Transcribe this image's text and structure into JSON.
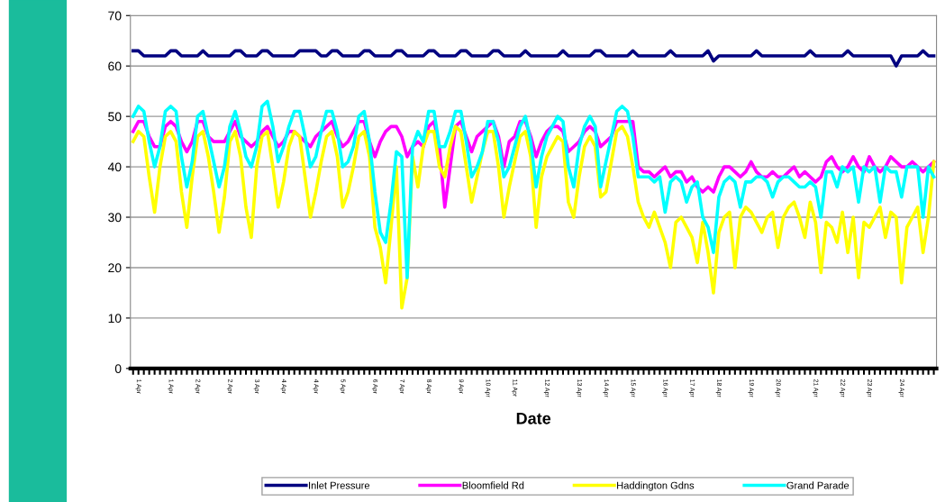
{
  "chart_data": {
    "type": "line",
    "xlabel": "Date",
    "categories": [
      null,
      "1 Apr",
      null,
      null,
      null,
      null,
      null,
      "1 Apr",
      null,
      null,
      null,
      null,
      "2 Apr",
      null,
      null,
      null,
      null,
      null,
      "2 Apr",
      null,
      null,
      null,
      null,
      "3 Apr",
      null,
      null,
      null,
      null,
      "4 Apr",
      null,
      null,
      null,
      null,
      null,
      "4 Apr",
      null,
      null,
      null,
      null,
      "5 Apr",
      null,
      null,
      null,
      null,
      null,
      "6 Apr",
      null,
      null,
      null,
      null,
      "7 Apr",
      null,
      null,
      null,
      null,
      "8 Apr",
      null,
      null,
      null,
      null,
      null,
      "9 Apr",
      null,
      null,
      null,
      null,
      "10 Apr",
      null,
      null,
      null,
      null,
      "11 Apr",
      null,
      null,
      null,
      null,
      null,
      "12 Apr",
      null,
      null,
      null,
      null,
      null,
      "13 Apr",
      null,
      null,
      null,
      null,
      "14 Apr",
      null,
      null,
      null,
      null,
      "15 Apr",
      null,
      null,
      null,
      null,
      null,
      "16 Apr",
      null,
      null,
      null,
      null,
      "17 Apr",
      null,
      null,
      null,
      null,
      "18 Apr",
      null,
      null,
      null,
      null,
      null,
      "19 Apr",
      null,
      null,
      null,
      null,
      "20 Apr",
      null,
      null,
      null,
      null,
      null,
      null,
      "21 Apr",
      null,
      null,
      null,
      null,
      "22 Apr",
      null,
      null,
      null,
      null,
      "23 Apr",
      null,
      null,
      null,
      null,
      null,
      "24 Apr",
      null,
      null,
      null,
      null,
      null,
      null
    ],
    "series": [
      {
        "name": "Inlet Pressure",
        "color": "#000080",
        "values": [
          63,
          63,
          62,
          62,
          62,
          62,
          62,
          63,
          63,
          62,
          62,
          62,
          62,
          63,
          62,
          62,
          62,
          62,
          62,
          63,
          63,
          62,
          62,
          62,
          63,
          63,
          62,
          62,
          62,
          62,
          62,
          63,
          63,
          63,
          63,
          62,
          62,
          63,
          63,
          62,
          62,
          62,
          62,
          63,
          63,
          62,
          62,
          62,
          62,
          63,
          63,
          62,
          62,
          62,
          62,
          63,
          63,
          62,
          62,
          62,
          62,
          63,
          63,
          62,
          62,
          62,
          62,
          63,
          63,
          62,
          62,
          62,
          62,
          63,
          62,
          62,
          62,
          62,
          62,
          62,
          63,
          62,
          62,
          62,
          62,
          62,
          63,
          63,
          62,
          62,
          62,
          62,
          62,
          63,
          62,
          62,
          62,
          62,
          62,
          62,
          63,
          62,
          62,
          62,
          62,
          62,
          62,
          63,
          61,
          62,
          62,
          62,
          62,
          62,
          62,
          62,
          63,
          62,
          62,
          62,
          62,
          62,
          62,
          62,
          62,
          62,
          63,
          62,
          62,
          62,
          62,
          62,
          62,
          63,
          62,
          62,
          62,
          62,
          62,
          62,
          62,
          62,
          60,
          62,
          62,
          62,
          62,
          63,
          62,
          62
        ]
      },
      {
        "name": "Bloomfield Rd",
        "color": "#ff00ff",
        "values": [
          47,
          49,
          49,
          46,
          44,
          44,
          48,
          49,
          48,
          45,
          43,
          45,
          49,
          49,
          46,
          45,
          45,
          45,
          47,
          49,
          46,
          45,
          44,
          45,
          47,
          48,
          46,
          44,
          45,
          47,
          47,
          46,
          45,
          44,
          46,
          47,
          48,
          49,
          46,
          44,
          45,
          47,
          49,
          49,
          45,
          42,
          45,
          47,
          48,
          48,
          46,
          42,
          44,
          45,
          44,
          48,
          49,
          44,
          32,
          40,
          48,
          49,
          46,
          43,
          46,
          47,
          48,
          49,
          46,
          40,
          45,
          46,
          49,
          49,
          46,
          42,
          45,
          47,
          48,
          48,
          47,
          43,
          44,
          45,
          47,
          48,
          47,
          44,
          45,
          46,
          49,
          49,
          49,
          49,
          40,
          39,
          39,
          38,
          39,
          40,
          38,
          39,
          39,
          37,
          38,
          36,
          35,
          36,
          35,
          38,
          40,
          40,
          39,
          38,
          39,
          41,
          39,
          38,
          38,
          39,
          38,
          38,
          39,
          40,
          38,
          39,
          38,
          37,
          38,
          41,
          42,
          40,
          39,
          40,
          42,
          40,
          39,
          42,
          40,
          39,
          40,
          42,
          41,
          40,
          40,
          41,
          40,
          39,
          40,
          41
        ]
      },
      {
        "name": "Haddington Gdns",
        "color": "#ffff00",
        "values": [
          45,
          47,
          46,
          38,
          31,
          40,
          46,
          47,
          45,
          35,
          28,
          38,
          46,
          47,
          42,
          35,
          27,
          34,
          45,
          47,
          42,
          32,
          26,
          40,
          46,
          47,
          40,
          32,
          37,
          44,
          47,
          46,
          38,
          30,
          35,
          41,
          46,
          47,
          42,
          32,
          35,
          40,
          46,
          47,
          42,
          28,
          24,
          17,
          28,
          40,
          12,
          18,
          42,
          36,
          44,
          47,
          47,
          40,
          38,
          44,
          48,
          47,
          40,
          33,
          38,
          43,
          47,
          47,
          40,
          30,
          36,
          41,
          46,
          47,
          42,
          28,
          38,
          42,
          44,
          46,
          45,
          33,
          30,
          38,
          44,
          46,
          44,
          34,
          35,
          41,
          47,
          48,
          46,
          40,
          33,
          30,
          28,
          31,
          28,
          25,
          20,
          29,
          30,
          28,
          26,
          21,
          29,
          23,
          15,
          27,
          30,
          31,
          20,
          30,
          32,
          31,
          29,
          27,
          30,
          31,
          24,
          30,
          32,
          33,
          30,
          26,
          33,
          29,
          19,
          29,
          28,
          25,
          31,
          23,
          30,
          18,
          29,
          28,
          30,
          32,
          26,
          31,
          30,
          17,
          28,
          30,
          32,
          23,
          30,
          41
        ]
      },
      {
        "name": "Grand Parade",
        "color": "#00ffff",
        "values": [
          50,
          52,
          51,
          45,
          40,
          44,
          51,
          52,
          51,
          42,
          36,
          41,
          50,
          51,
          46,
          41,
          36,
          40,
          48,
          51,
          47,
          42,
          40,
          44,
          52,
          53,
          48,
          41,
          44,
          48,
          51,
          51,
          46,
          40,
          42,
          47,
          51,
          51,
          47,
          40,
          41,
          44,
          50,
          51,
          45,
          35,
          27,
          25,
          33,
          43,
          42,
          18,
          44,
          47,
          45,
          51,
          51,
          44,
          44,
          47,
          51,
          51,
          45,
          38,
          40,
          43,
          49,
          49,
          45,
          38,
          40,
          44,
          48,
          50,
          45,
          36,
          42,
          46,
          48,
          50,
          49,
          40,
          36,
          44,
          48,
          50,
          48,
          36,
          41,
          46,
          51,
          52,
          51,
          46,
          38,
          38,
          38,
          37,
          38,
          31,
          37,
          38,
          37,
          33,
          36,
          37,
          30,
          28,
          23,
          34,
          37,
          38,
          37,
          32,
          37,
          37,
          38,
          38,
          37,
          34,
          37,
          38,
          38,
          37,
          36,
          36,
          37,
          36,
          30,
          39,
          39,
          36,
          40,
          39,
          40,
          33,
          40,
          39,
          40,
          33,
          40,
          39,
          39,
          34,
          40,
          40,
          40,
          30,
          40,
          38
        ]
      }
    ],
    "ylim": [
      0,
      70
    ],
    "yticks": [
      0,
      10,
      20,
      30,
      40,
      50,
      60,
      70
    ],
    "grid": "y",
    "legend": "bottom",
    "line_style": "solid",
    "marker": "none"
  }
}
